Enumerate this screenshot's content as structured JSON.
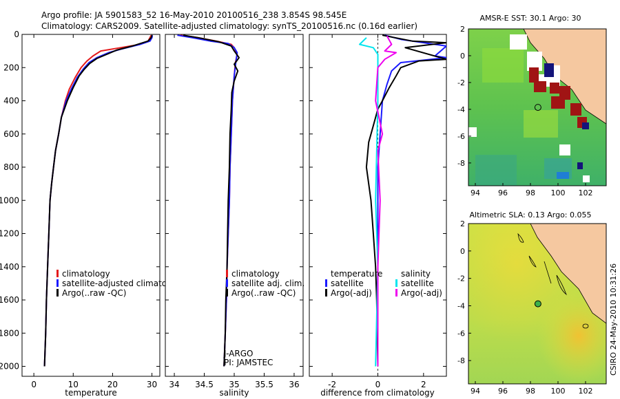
{
  "header": {
    "line1": "Argo profile: JA 5901583_52 16-May-2010 20100516_238 3.854S 98.545E",
    "line2": "Climatology: CARS2009. Satellite-adjusted climatology: synTS_20100516.nc (0.16d earlier)"
  },
  "side_label": "CSIRO 24-May-2010 10:31:26",
  "chart_data": [
    {
      "type": "line",
      "name": "temperature-profile",
      "xlabel": "temperature",
      "xlim": [
        -3,
        32
      ],
      "ylim": [
        2060,
        0
      ],
      "xticks": [
        0,
        10,
        20,
        30
      ],
      "xtick_labels": [
        "0",
        "10",
        "20",
        "30"
      ],
      "yticks": [
        0,
        200,
        400,
        600,
        800,
        1000,
        1200,
        1400,
        1600,
        1800,
        2000
      ],
      "ytick_labels": [
        "0",
        "200",
        "400",
        "600",
        "800",
        "1000",
        "1200",
        "1400",
        "1600",
        "1800",
        "2000"
      ],
      "legend": [
        "climatology",
        "satellite-adjusted climatology",
        "Argo(..raw -QC)"
      ],
      "series": [
        {
          "name": "climatology",
          "color": "#e41a1c",
          "points": [
            [
              29.8,
              5
            ],
            [
              29.5,
              20
            ],
            [
              29,
              40
            ],
            [
              27,
              60
            ],
            [
              22,
              80
            ],
            [
              17,
              100
            ],
            [
              15,
              130
            ],
            [
              13.5,
              160
            ],
            [
              12,
              200
            ],
            [
              10.5,
              260
            ],
            [
              9,
              330
            ],
            [
              8,
              400
            ],
            [
              7,
              500
            ],
            [
              6.3,
              600
            ],
            [
              5.5,
              700
            ],
            [
              5,
              800
            ],
            [
              4.5,
              900
            ],
            [
              4.1,
              1000
            ],
            [
              3.8,
              1200
            ],
            [
              3.5,
              1400
            ],
            [
              3.2,
              1600
            ],
            [
              3,
              1800
            ],
            [
              2.7,
              2000
            ]
          ]
        },
        {
          "name": "satellite-adjusted climatology",
          "color": "#1a1aff",
          "points": [
            [
              30.1,
              5
            ],
            [
              30,
              20
            ],
            [
              29.5,
              40
            ],
            [
              27,
              60
            ],
            [
              22,
              90
            ],
            [
              19,
              110
            ],
            [
              16,
              140
            ],
            [
              14,
              170
            ],
            [
              12.5,
              210
            ],
            [
              11,
              260
            ],
            [
              9.5,
              330
            ],
            [
              8.2,
              400
            ],
            [
              7,
              500
            ],
            [
              6.3,
              600
            ],
            [
              5.5,
              700
            ],
            [
              5,
              800
            ],
            [
              4.5,
              900
            ],
            [
              4.1,
              1000
            ],
            [
              3.8,
              1200
            ],
            [
              3.5,
              1400
            ],
            [
              3.2,
              1600
            ],
            [
              3,
              1800
            ],
            [
              2.7,
              2000
            ]
          ]
        },
        {
          "name": "Argo(..raw -QC)",
          "color": "#000000",
          "points": [
            [
              30,
              5
            ],
            [
              29.8,
              20
            ],
            [
              29,
              40
            ],
            [
              25,
              70
            ],
            [
              21,
              95
            ],
            [
              18.5,
              120
            ],
            [
              16,
              145
            ],
            [
              14.2,
              175
            ],
            [
              12.8,
              210
            ],
            [
              11.5,
              250
            ],
            [
              10,
              320
            ],
            [
              8.5,
              400
            ],
            [
              7,
              500
            ],
            [
              6.3,
              600
            ],
            [
              5.5,
              700
            ],
            [
              5,
              800
            ],
            [
              4.5,
              900
            ],
            [
              4.1,
              1000
            ],
            [
              3.8,
              1200
            ],
            [
              3.5,
              1400
            ],
            [
              3.2,
              1600
            ],
            [
              3,
              1800
            ],
            [
              2.7,
              2000
            ]
          ]
        }
      ]
    },
    {
      "type": "line",
      "name": "salinity-profile",
      "xlabel": "salinity",
      "xlim": [
        33.85,
        36.15
      ],
      "ylim": [
        2060,
        0
      ],
      "xticks": [
        34,
        34.5,
        35,
        35.5,
        36
      ],
      "xtick_labels": [
        "34",
        "34.5",
        "35",
        "35.5",
        "36"
      ],
      "legend": [
        "climatology",
        "satellite adj. clim.",
        "Argo(..raw -QC)"
      ],
      "annotations": [
        "J-ARGO",
        "PI: JAMSTEC"
      ],
      "series": [
        {
          "name": "climatology",
          "color": "#e41a1c",
          "points": [
            [
              34.1,
              5
            ],
            [
              34.4,
              20
            ],
            [
              34.7,
              40
            ],
            [
              34.95,
              60
            ],
            [
              35,
              80
            ],
            [
              35.05,
              120
            ],
            [
              35.02,
              170
            ],
            [
              35,
              250
            ],
            [
              34.97,
              400
            ],
            [
              34.95,
              600
            ],
            [
              34.93,
              800
            ],
            [
              34.92,
              1000
            ],
            [
              34.9,
              1200
            ],
            [
              34.88,
              1400
            ],
            [
              34.87,
              1600
            ],
            [
              34.85,
              1800
            ],
            [
              34.83,
              2000
            ]
          ]
        },
        {
          "name": "satellite adj. clim.",
          "color": "#1a1aff",
          "points": [
            [
              34.05,
              5
            ],
            [
              34.3,
              20
            ],
            [
              34.6,
              40
            ],
            [
              34.9,
              55
            ],
            [
              35,
              80
            ],
            [
              35.05,
              110
            ],
            [
              35.03,
              160
            ],
            [
              35,
              250
            ],
            [
              34.97,
              400
            ],
            [
              34.95,
              600
            ],
            [
              34.93,
              800
            ],
            [
              34.92,
              1000
            ],
            [
              34.9,
              1200
            ],
            [
              34.88,
              1400
            ],
            [
              34.87,
              1600
            ],
            [
              34.85,
              1800
            ],
            [
              34.83,
              2000
            ]
          ]
        },
        {
          "name": "Argo(..raw -QC)",
          "color": "#000000",
          "points": [
            [
              34.15,
              5
            ],
            [
              34.4,
              20
            ],
            [
              34.75,
              45
            ],
            [
              34.95,
              70
            ],
            [
              35,
              100
            ],
            [
              35.08,
              140
            ],
            [
              35,
              180
            ],
            [
              35.06,
              220
            ],
            [
              35,
              280
            ],
            [
              34.96,
              350
            ],
            [
              34.95,
              450
            ],
            [
              34.93,
              600
            ],
            [
              34.92,
              800
            ],
            [
              34.9,
              1000
            ],
            [
              34.89,
              1200
            ],
            [
              34.88,
              1400
            ],
            [
              34.86,
              1600
            ],
            [
              34.85,
              1800
            ],
            [
              34.83,
              2000
            ]
          ]
        }
      ]
    },
    {
      "type": "line",
      "name": "difference-profile",
      "xlabel": "difference from climatology",
      "xlim": [
        -3,
        3
      ],
      "ylim": [
        2060,
        0
      ],
      "xticks": [
        -2,
        0,
        2
      ],
      "xtick_labels": [
        "-2",
        "0",
        "2"
      ],
      "legend_left_title": "temperature",
      "legend_left": [
        "satellite",
        "Argo(-adj)"
      ],
      "legend_right_title": "salinity",
      "legend_right": [
        "satellite",
        "Argo(-adj)"
      ],
      "series": [
        {
          "name": "temperature satellite",
          "color": "#1a1aff",
          "points": [
            [
              0.3,
              5
            ],
            [
              1,
              30
            ],
            [
              2.5,
              60
            ],
            [
              3,
              70
            ],
            [
              2.5,
              130
            ],
            [
              3,
              140
            ],
            [
              1,
              170
            ],
            [
              0.6,
              220
            ],
            [
              0.4,
              300
            ],
            [
              0.2,
              400
            ],
            [
              0.1,
              600
            ],
            [
              0,
              800
            ],
            [
              0,
              2000
            ]
          ]
        },
        {
          "name": "temperature Argo(-adj)",
          "color": "#000000",
          "points": [
            [
              0.2,
              5
            ],
            [
              1.5,
              40
            ],
            [
              3,
              50
            ],
            [
              1.2,
              80
            ],
            [
              3,
              150
            ],
            [
              1.8,
              160
            ],
            [
              1,
              200
            ],
            [
              0.8,
              250
            ],
            [
              0.5,
              320
            ],
            [
              0.2,
              400
            ],
            [
              0,
              450
            ],
            [
              -0.2,
              550
            ],
            [
              -0.4,
              650
            ],
            [
              -0.5,
              800
            ],
            [
              -0.3,
              1000
            ],
            [
              -0.2,
              1200
            ],
            [
              -0.1,
              1400
            ],
            [
              -0.05,
              1600
            ],
            [
              0,
              2000
            ]
          ]
        },
        {
          "name": "salinity satellite",
          "color": "#00e5ee",
          "points": [
            [
              -0.5,
              20
            ],
            [
              -0.8,
              60
            ],
            [
              -0.2,
              80
            ],
            [
              0,
              120
            ],
            [
              0,
              400
            ],
            [
              -0.1,
              1000
            ],
            [
              0,
              1400
            ],
            [
              -0.1,
              2000
            ]
          ]
        },
        {
          "name": "salinity Argo(-adj)",
          "color": "#ee00ee",
          "points": [
            [
              0.4,
              10
            ],
            [
              0.6,
              60
            ],
            [
              0.3,
              100
            ],
            [
              0.8,
              110
            ],
            [
              0.3,
              150
            ],
            [
              0,
              200
            ],
            [
              -0.1,
              400
            ],
            [
              0.2,
              600
            ],
            [
              0,
              700
            ],
            [
              0.1,
              1000
            ],
            [
              0,
              1400
            ],
            [
              0,
              2000
            ]
          ]
        }
      ]
    },
    {
      "type": "heatmap",
      "name": "sst-map",
      "title": "AMSR-E SST: 30.1 Argo: 30",
      "xlim": [
        93.5,
        103.5
      ],
      "ylim": [
        -9.7,
        2
      ],
      "xticks": [
        94,
        96,
        98,
        100,
        102
      ],
      "yticks": [
        2,
        0,
        -2,
        -4,
        -6,
        -8
      ],
      "xtick_labels": [
        "94",
        "96",
        "98",
        "100",
        "102"
      ],
      "ytick_labels": [
        "2",
        "0",
        "-2",
        "-4",
        "-6",
        "-8"
      ],
      "float_position": [
        98.545,
        -3.854
      ]
    },
    {
      "type": "heatmap",
      "name": "sla-map",
      "title": "Altimetric SLA: 0.13 Argo: 0.055",
      "xlim": [
        93.5,
        103.5
      ],
      "ylim": [
        -9.7,
        2
      ],
      "xticks": [
        94,
        96,
        98,
        100,
        102
      ],
      "yticks": [
        2,
        0,
        -2,
        -4,
        -6,
        -8
      ],
      "xtick_labels": [
        "94",
        "96",
        "98",
        "100",
        "102"
      ],
      "ytick_labels": [
        "2",
        "0",
        "-2",
        "-4",
        "-6",
        "-8"
      ],
      "float_position": [
        98.545,
        -3.854
      ]
    }
  ]
}
